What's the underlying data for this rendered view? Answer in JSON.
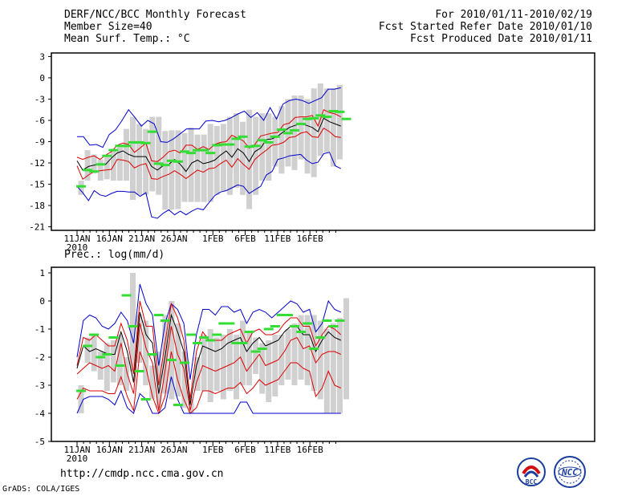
{
  "header": {
    "title": "DERF/NCC/BCC Monthly Forecast",
    "member_size": "Member Size=40",
    "variable": "Mean Surf. Temp.: °C",
    "period": "For 2010/01/11-2010/02/19",
    "started": "Fcst Started Refer Date 2010/01/10",
    "produced": "Fcst Produced Date 2010/01/11"
  },
  "footer": {
    "url": "http://cmdp.ncc.cma.gov.cn",
    "credit": "GrADS: COLA/IGES",
    "logo_left_text": "BCC",
    "logo_right_text": "NCC"
  },
  "colors": {
    "envelope": "#0000cc",
    "spread": "#dd0000",
    "mean": "#000000",
    "box": "#d0d0d0",
    "marker": "#33dd33"
  },
  "chart_data": [
    {
      "type": "line",
      "title": "Mean Surf. Temp.: °C",
      "x_labels": [
        "11JAN",
        "16JAN",
        "21JAN",
        "26JAN",
        "1FEB",
        "6FEB",
        "11FEB",
        "16FEB"
      ],
      "x_label_days": [
        0,
        5,
        10,
        15,
        21,
        26,
        31,
        36
      ],
      "x_sub_label": "2010",
      "days": 40,
      "ylim": [
        -21.5,
        3.5
      ],
      "yticks": [
        3,
        0,
        -3,
        -6,
        -9,
        -12,
        -15,
        -18,
        -21
      ],
      "ytick_labels": [
        "3",
        "0",
        "-3",
        "-6",
        "-9",
        "-12",
        "-15",
        "-18",
        "-21"
      ],
      "series": [
        {
          "name": "max",
          "values": [
            -8.3,
            -8.3,
            -9.5,
            -9.4,
            -9.8,
            -8,
            -7.3,
            -6,
            -4.5,
            -5.6,
            -6.8,
            -6,
            -6.5,
            -9,
            -9.1,
            -8.6,
            -7.9,
            -7.2,
            -7.2,
            -7.2,
            -6.1,
            -6,
            -6.2,
            -6,
            -5.6,
            -5.1,
            -4.7,
            -5.6,
            -4.9,
            -6,
            -4.2,
            -5.8,
            -3.7,
            -3.2,
            -3,
            -3.2,
            -3.6,
            -3.2,
            -2.8,
            -1.6,
            -1.6,
            -1.4
          ]
        },
        {
          "name": "upper",
          "values": [
            -11.2,
            -11.5,
            -11.2,
            -11,
            -11.5,
            -10.9,
            -10.4,
            -9.5,
            -9.2,
            -9.4,
            -10.5,
            -9.9,
            -9.2,
            -11.7,
            -11.8,
            -11.2,
            -10.4,
            -10.2,
            -10.6,
            -9.5,
            -9.5,
            -10.1,
            -9.7,
            -10.1,
            -9.4,
            -9.1,
            -9,
            -8.1,
            -8.5,
            -8.9,
            -9.9,
            -9.4,
            -8.2,
            -8,
            -7.8,
            -7.7,
            -6.6,
            -6.4,
            -5.6,
            -5.5,
            -5.5,
            -5.3,
            -6.8,
            -4.5,
            -4.9,
            -5.1,
            -5.5
          ]
        },
        {
          "name": "mean",
          "values": [
            -11.7,
            -13,
            -12.5,
            -12.3,
            -12.2,
            -12.2,
            -11.3,
            -10.6,
            -10.3,
            -10.8,
            -11.1,
            -11.1,
            -11.1,
            -12.5,
            -13,
            -12.4,
            -12.2,
            -11.5,
            -12.2,
            -13.2,
            -12,
            -11.6,
            -12.1,
            -11.9,
            -11.6,
            -10.9,
            -10.3,
            -11.2,
            -10,
            -10.6,
            -11.8,
            -10.4,
            -9.9,
            -8.7,
            -8.6,
            -8.2,
            -7.6,
            -7,
            -6.7,
            -6.5,
            -6.7,
            -7,
            -7.6,
            -5.7,
            -6.2,
            -6.5,
            -6.8
          ]
        },
        {
          "name": "lower",
          "values": [
            -12.4,
            -14.3,
            -13.7,
            -13.2,
            -13.1,
            -13,
            -12.9,
            -11.5,
            -11.6,
            -11.8,
            -12.7,
            -12.3,
            -12.1,
            -14.2,
            -14.3,
            -13.9,
            -13.6,
            -13.1,
            -13.6,
            -14.2,
            -13.6,
            -13,
            -13.3,
            -12.8,
            -12.7,
            -12.1,
            -11.6,
            -12.6,
            -11.4,
            -12.2,
            -12.9,
            -11.5,
            -10.8,
            -10.2,
            -9.5,
            -9.4,
            -9.1,
            -8.4,
            -8.3,
            -7.8,
            -7.6,
            -8.3,
            -8.4,
            -7.1,
            -7.6,
            -8.3,
            -8.4
          ]
        },
        {
          "name": "min",
          "values": [
            -15.3,
            -16.2,
            -17.3,
            -15.9,
            -16.5,
            -16.7,
            -16.3,
            -16,
            -16,
            -16.1,
            -16.1,
            -16.7,
            -16.2,
            -19.6,
            -19.8,
            -19.1,
            -18.6,
            -19.3,
            -18.8,
            -19.3,
            -18.8,
            -18.4,
            -18.6,
            -17.6,
            -16.6,
            -16.1,
            -15.9,
            -15.5,
            -15.1,
            -15.3,
            -16.3,
            -15.8,
            -15.3,
            -13.7,
            -13.2,
            -11.5,
            -11.3,
            -11,
            -10.9,
            -10.8,
            -11.6,
            -12.1,
            -11.9,
            -10.7,
            -10.5,
            -12.4,
            -12.8
          ]
        }
      ],
      "boxes": [
        [
          -14.5,
          -16.5
        ],
        [
          -10.2,
          -14.5
        ],
        [
          -10.8,
          -13.5
        ],
        [
          -11.5,
          -14.5
        ],
        [
          -11.2,
          -14.3
        ],
        [
          -10,
          -14.5
        ],
        [
          -9.8,
          -14.5
        ],
        [
          -7.2,
          -14.5
        ],
        [
          -5.5,
          -17.2
        ],
        [
          -6.5,
          -16.5
        ],
        [
          -7.2,
          -16.5
        ],
        [
          -5.5,
          -16
        ],
        [
          -5.5,
          -16.5
        ],
        [
          -7.5,
          -18.6
        ],
        [
          -7.4,
          -18.6
        ],
        [
          -7.4,
          -18.5
        ],
        [
          -7.8,
          -17.5
        ],
        [
          -7,
          -17.5
        ],
        [
          -8,
          -17.5
        ],
        [
          -8,
          -17.5
        ],
        [
          -6.5,
          -17.5
        ],
        [
          -6.8,
          -16.5
        ],
        [
          -6.5,
          -16
        ],
        [
          -5.5,
          -16.5
        ],
        [
          -5,
          -15.5
        ],
        [
          -6.2,
          -16.5
        ],
        [
          -4.5,
          -18.5
        ],
        [
          -5.5,
          -16.5
        ],
        [
          -5,
          -14.5
        ],
        [
          -5,
          -14.5
        ],
        [
          -5.5,
          -12.5
        ],
        [
          -4,
          -13.5
        ],
        [
          -3,
          -12.5
        ],
        [
          -2.5,
          -13
        ],
        [
          -2.5,
          -11.5
        ],
        [
          -3,
          -13.5
        ],
        [
          -1.5,
          -14
        ],
        [
          -0.8,
          -11
        ],
        [
          -1.5,
          -10.5
        ],
        [
          -1.5,
          -12.5
        ],
        [
          -1,
          -11.5
        ]
      ],
      "markers": [
        -15.3,
        -13,
        -13.2,
        -12.2,
        -11,
        -10.2,
        -9.6,
        -9.6,
        -9.1,
        -9.1,
        -9.2,
        -7.6,
        -12.1,
        -12.3,
        -11.7,
        -11.8,
        -10.4,
        -10.6,
        -10.2,
        -10.2,
        -10.6,
        -9.5,
        -9.4,
        -9.4,
        -8.6,
        -8.3,
        -9.7,
        -9.6,
        -8.8,
        -9.1,
        -8.3,
        -7.3,
        -7.8,
        -7.4,
        -6.5,
        -5.8,
        -5.7,
        -5.3,
        -5.5,
        -4.7,
        -4.8,
        -5.8
      ]
    },
    {
      "type": "line",
      "title": "Prec.: log(mm/d)",
      "x_labels": [
        "11JAN",
        "16JAN",
        "21JAN",
        "26JAN",
        "1FEB",
        "6FEB",
        "11FEB",
        "16FEB"
      ],
      "x_label_days": [
        0,
        5,
        10,
        15,
        21,
        26,
        31,
        36
      ],
      "x_sub_label": "2010",
      "days": 40,
      "ylim": [
        -5,
        1.2
      ],
      "yticks": [
        1,
        0,
        -1,
        -2,
        -3,
        -4,
        -5
      ],
      "ytick_labels": [
        "1",
        "0",
        "-1",
        "-2",
        "-3",
        "-4",
        "-5"
      ],
      "series": [
        {
          "name": "max",
          "values": [
            -2,
            -0.7,
            -0.5,
            -0.6,
            -0.9,
            -1,
            -0.8,
            -0.4,
            -0.7,
            -1.5,
            0.6,
            -0.1,
            -0.5,
            -2.3,
            -0.8,
            -0.1,
            -0.3,
            -0.8,
            -2.8,
            -1.2,
            -0.3,
            -0.3,
            -0.5,
            -0.2,
            -0.2,
            -0.4,
            -0.3,
            -0.8,
            -0.4,
            -0.3,
            -0.4,
            -0.6,
            -0.4,
            -0.2,
            0,
            -0.1,
            -0.4,
            -0.3,
            -1.1,
            -0.8,
            0,
            -0.3,
            -0.4
          ]
        },
        {
          "name": "upper",
          "values": [
            -2.3,
            -1.3,
            -1.4,
            -1.2,
            -1.4,
            -1.6,
            -1.6,
            -0.8,
            -1.4,
            -2.6,
            0,
            -0.9,
            -0.9,
            -3,
            -1.5,
            -0.1,
            -0.6,
            -1.4,
            -3.5,
            -1.8,
            -1.1,
            -1.4,
            -1.4,
            -1.4,
            -1.2,
            -1.1,
            -1,
            -1.5,
            -1.1,
            -1,
            -1.2,
            -1.2,
            -1.1,
            -0.8,
            -0.6,
            -0.6,
            -0.9,
            -0.9,
            -1.6,
            -1.2,
            -0.9,
            -1,
            -1.2
          ]
        },
        {
          "name": "mean",
          "values": [
            -2.4,
            -1.6,
            -1.8,
            -1.7,
            -1.8,
            -1.9,
            -1.9,
            -1.1,
            -1.8,
            -2.9,
            -0.4,
            -1.2,
            -1.5,
            -3.3,
            -2,
            -0.5,
            -1.1,
            -1.8,
            -3.7,
            -2.3,
            -1.6,
            -1.7,
            -1.8,
            -1.7,
            -1.5,
            -1.4,
            -1.3,
            -1.8,
            -1.5,
            -1.3,
            -1.6,
            -1.5,
            -1.4,
            -1.1,
            -0.9,
            -0.9,
            -1.2,
            -1.2,
            -1.8,
            -1.4,
            -1.1,
            -1.3,
            -1.4
          ]
        },
        {
          "name": "lower",
          "values": [
            -2.6,
            -2.4,
            -2.2,
            -2.3,
            -2.4,
            -2.3,
            -2.5,
            -1.5,
            -2.6,
            -3.3,
            -0.8,
            -1.7,
            -2.2,
            -3.9,
            -2.5,
            -0.9,
            -1.9,
            -2.4,
            -3.9,
            -2.9,
            -2.3,
            -2.4,
            -2.5,
            -2.4,
            -2.3,
            -2.2,
            -2,
            -2.5,
            -2.2,
            -1.9,
            -2.3,
            -2.2,
            -2.1,
            -1.8,
            -1.4,
            -1.3,
            -1.7,
            -1.6,
            -2.2,
            -1.9,
            -1.8,
            -1.8,
            -1.9
          ]
        },
        {
          "name": "low",
          "values": [
            -3.5,
            -3.1,
            -3.2,
            -3.2,
            -3.2,
            -3.3,
            -3.3,
            -2.7,
            -3.4,
            -3.9,
            -1.8,
            -2.4,
            -3.4,
            -4,
            -3.4,
            -1.8,
            -2.8,
            -3.5,
            -4,
            -3.8,
            -3.2,
            -3.2,
            -3.3,
            -3.2,
            -3.1,
            -3.1,
            -2.9,
            -3.3,
            -3.1,
            -2.8,
            -3,
            -2.9,
            -2.8,
            -2.5,
            -2.2,
            -2.2,
            -2.4,
            -2.5,
            -3.4,
            -3.1,
            -2.5,
            -3,
            -3.1
          ]
        },
        {
          "name": "min",
          "values": [
            -4,
            -3.5,
            -3.4,
            -3.4,
            -3.4,
            -3.5,
            -3.7,
            -3.2,
            -3.8,
            -4,
            -3.3,
            -3.5,
            -4,
            -4,
            -3.8,
            -2.7,
            -3.5,
            -4,
            -4,
            -4,
            -4,
            -4,
            -4,
            -4,
            -4,
            -4,
            -3.6,
            -3.6,
            -4,
            -4,
            -4,
            -4,
            -4,
            -4,
            -4,
            -4,
            -4,
            -4,
            -4,
            -4,
            -4,
            -4,
            -4
          ]
        }
      ],
      "boxes": [
        [
          -3,
          -4
        ],
        [
          -1.3,
          -2.2
        ],
        [
          -1.2,
          -2.5
        ],
        [
          -1.8,
          -2.8
        ],
        [
          -1.5,
          -3.2
        ],
        [
          -1.4,
          -2.9
        ],
        [
          -1.2,
          -3
        ],
        [
          -2,
          -3.2
        ],
        [
          1,
          -2.5
        ],
        [
          -0.5,
          -2.2
        ],
        [
          -0.7,
          -3
        ],
        [
          -2.3,
          -3.5
        ],
        [
          -1.8,
          -3.8
        ],
        [
          -0.5,
          -3.3
        ],
        [
          0,
          -3.5
        ],
        [
          -0.8,
          -3.4
        ],
        [
          -1.8,
          -3.8
        ],
        [
          -3.5,
          -4
        ],
        [
          -2,
          -3.2
        ],
        [
          -1.2,
          -3.2
        ],
        [
          -1,
          -3.6
        ],
        [
          -1.3,
          -3.2
        ],
        [
          -1.2,
          -3.5
        ],
        [
          -1,
          -3.2
        ],
        [
          -1.2,
          -3.5
        ],
        [
          -0.7,
          -3
        ],
        [
          -1.1,
          -3
        ],
        [
          -1.3,
          -2.6
        ],
        [
          -1.5,
          -3.3
        ],
        [
          -1.4,
          -3.6
        ],
        [
          -1.2,
          -3.4
        ],
        [
          -1.2,
          -3
        ],
        [
          -1,
          -2.8
        ],
        [
          -0.8,
          -3
        ],
        [
          -0.5,
          -2.8
        ],
        [
          -0.5,
          -3
        ],
        [
          -0.5,
          -3.2
        ],
        [
          -0.7,
          -3.5
        ],
        [
          -1,
          -4
        ],
        [
          -0.8,
          -4
        ],
        [
          -0.6,
          -4
        ],
        [
          0.1,
          -3.5
        ]
      ],
      "markers": [
        -3.2,
        -1.6,
        -1.2,
        -2,
        -1.9,
        -1.3,
        -2.3,
        0.2,
        -0.9,
        -2.5,
        -3.5,
        -1.9,
        -0.5,
        -0.7,
        -2.1,
        -3.7,
        -2.2,
        -1.2,
        -1.5,
        -1.3,
        -1.4,
        -1.2,
        -0.8,
        -0.8,
        -1.5,
        -1.5,
        -1.1,
        -1.8,
        -1.7,
        -1,
        -0.9,
        -0.5,
        -0.5,
        -0.9,
        -1.1,
        -0.8,
        -1.7,
        -1.3,
        -0.7,
        -0.9,
        -0.7
      ]
    }
  ]
}
